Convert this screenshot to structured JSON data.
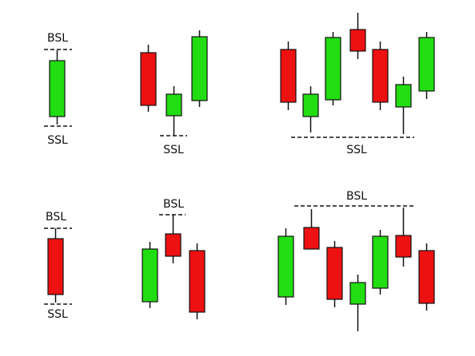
{
  "labels": [
    "BSL",
    "SSL",
    "SSL",
    "SSL",
    "BSL",
    "SSL",
    "BSL",
    "BSL"
  ]
}
